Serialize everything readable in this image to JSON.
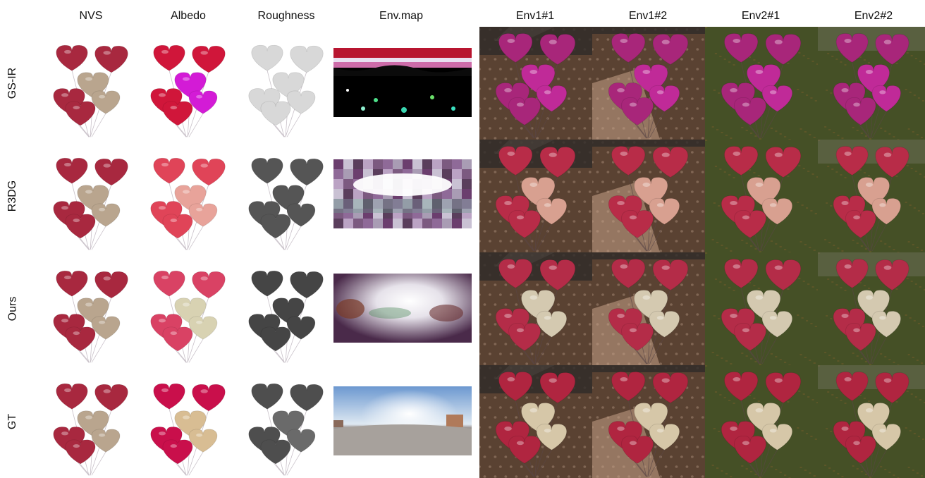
{
  "columns": [
    "NVS",
    "Albedo",
    "Roughness",
    "Env.map",
    "Env1#1",
    "Env1#2",
    "Env2#1",
    "Env2#2"
  ],
  "rows": [
    {
      "label": "GS-IR",
      "key": "gsir"
    },
    {
      "label": "R3DG",
      "key": "r3dg"
    },
    {
      "label": "Ours",
      "key": "ours"
    },
    {
      "label": "GT",
      "key": "gt"
    }
  ],
  "palette": {
    "balloon_red": "#a8283f",
    "balloon_dark": "#7a1a2c",
    "balloon_cream": "#b9a58e",
    "albedo_gsir": "#d0163a",
    "albedo_gsir_magenta": "#d31bd6",
    "albedo_r3dg": "#e04458",
    "albedo_r3dg_pink": "#e8a39a",
    "albedo_ours": "#d94264",
    "albedo_ours_cream": "#d8d2b2",
    "albedo_gt": "#c90f4b",
    "albedo_gt_tan": "#d8bd93",
    "rough_gsir": "#d8d8d8",
    "rough_r3dg": "#555555",
    "rough_ours": "#454545",
    "rough_gt": "#4e4e4e",
    "env1_floor": "#5a4232",
    "env1_dots": "#8a6f5c",
    "env2_grass": "#3e4a22",
    "env2_grass_light": "#5b6432",
    "gt_sky": "#8eb4dc",
    "gt_ground": "#9b9592"
  }
}
